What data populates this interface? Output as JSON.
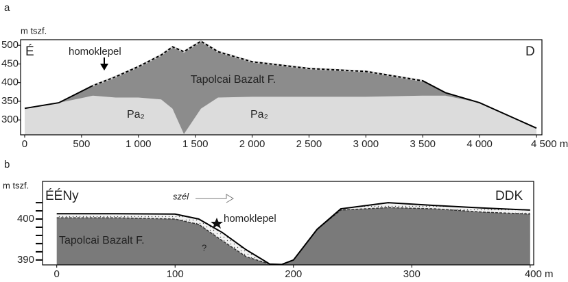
{
  "chart_data": [
    {
      "type": "profile",
      "panel_label": "a",
      "ylabel": "m tszf.",
      "x": [
        0,
        300,
        600,
        800,
        1000,
        1200,
        1300,
        1400,
        1550,
        1700,
        2000,
        2500,
        3000,
        3500,
        3700,
        4000,
        4500
      ],
      "series": [
        {
          "color": "#000000",
          "values": [
            331,
            346,
            392,
            416,
            443,
            474,
            496,
            483,
            511,
            483,
            456,
            438,
            430,
            405,
            373,
            346,
            278
          ]
        },
        {
          "color": "#8c8c8c",
          "values": [
            331,
            346,
            365,
            360,
            360,
            355,
            330,
            262,
            330,
            360,
            362,
            362,
            362,
            365,
            365,
            346,
            278
          ]
        }
      ],
      "fill_color": "#dcdcdc",
      "xlim": [
        -36,
        4548
      ],
      "ylim": [
        260,
        515
      ],
      "xticks": [
        0,
        500,
        {
          "value": 1000,
          "label": "1 000"
        },
        {
          "value": 1500,
          "label": "1 500"
        },
        {
          "value": 2000,
          "label": "2 000"
        },
        {
          "value": 2500,
          "label": "2 500"
        },
        {
          "value": 3000,
          "label": "3 000"
        },
        {
          "value": 3500,
          "label": "3 500"
        },
        {
          "value": 4000,
          "label": "4 000"
        },
        {
          "value": 4500,
          "label": "4 500 m"
        }
      ],
      "yticks": [
        300,
        350,
        400,
        450,
        500
      ],
      "annotations": [
        "É",
        "D",
        "homoklepel",
        "Tapolcai Bazalt F.",
        "Pa₂",
        "Pa₂"
      ]
    },
    {
      "type": "profile",
      "panel_label": "b",
      "ylabel": "m tszf.",
      "x": [
        0,
        50,
        100,
        120,
        140,
        160,
        180,
        190,
        200,
        220,
        240,
        280,
        320,
        360,
        400
      ],
      "series": [
        {
          "color": "#000000",
          "values": [
            401.3,
            401.3,
            401.2,
            400,
            396.7,
            392.5,
            389,
            388.9,
            390,
            397.5,
            402.5,
            404,
            403.3,
            402.7,
            402.2
          ]
        },
        {
          "color": "#7a7a7a",
          "values": [
            400.3,
            400.3,
            400,
            398.7,
            394.7,
            390.8,
            389,
            388.9,
            390,
            397.5,
            402.2,
            402.8,
            402.5,
            401.7,
            401.2
          ]
        }
      ],
      "xlim": [
        -12,
        403
      ],
      "ylim": [
        388.8,
        409.2
      ],
      "xticks": [
        0,
        100,
        200,
        300,
        {
          "value": 400,
          "label": "400 m"
        }
      ],
      "yticks": [
        390,
        400
      ],
      "yminorticks": [
        392,
        394,
        396,
        398,
        402,
        404
      ],
      "annotations": [
        "ÉÉNy",
        "DDK",
        "szél",
        "homoklepel",
        "Tapolcai Bazalt F.",
        "?"
      ]
    }
  ]
}
